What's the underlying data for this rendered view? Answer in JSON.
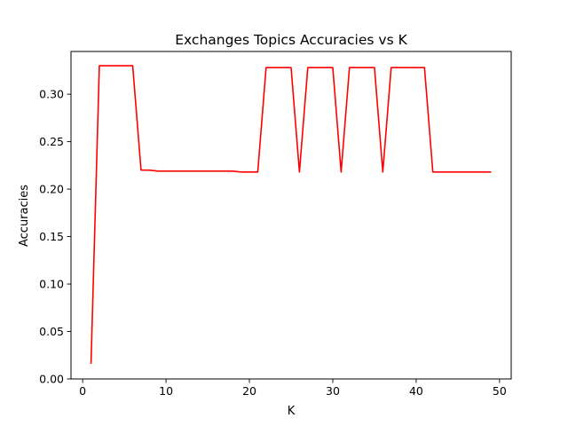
{
  "chart_data": {
    "type": "line",
    "title": "Exchanges Topics Accuracies vs K",
    "xlabel": "K",
    "ylabel": "Accuracies",
    "xlim": [
      -1.4,
      51.4
    ],
    "ylim": [
      0.0,
      0.345
    ],
    "x_ticks": [
      0,
      10,
      20,
      30,
      40,
      50
    ],
    "x_tick_labels": [
      "0",
      "10",
      "20",
      "30",
      "40",
      "50"
    ],
    "y_ticks": [
      0.0,
      0.05,
      0.1,
      0.15,
      0.2,
      0.25,
      0.3
    ],
    "y_tick_labels": [
      "0.00",
      "0.05",
      "0.10",
      "0.15",
      "0.20",
      "0.25",
      "0.30"
    ],
    "grid": false,
    "series": [
      {
        "color": "#ff0000",
        "x": [
          1,
          2,
          3,
          4,
          5,
          6,
          7,
          8,
          9,
          10,
          11,
          12,
          13,
          14,
          15,
          16,
          17,
          18,
          19,
          20,
          21,
          22,
          23,
          24,
          25,
          26,
          27,
          28,
          29,
          30,
          31,
          32,
          33,
          34,
          35,
          36,
          37,
          38,
          39,
          40,
          41,
          42,
          43,
          44,
          45,
          46,
          47,
          48,
          49
        ],
        "values": [
          0.016,
          0.33,
          0.33,
          0.33,
          0.33,
          0.33,
          0.22,
          0.22,
          0.219,
          0.219,
          0.219,
          0.219,
          0.219,
          0.219,
          0.219,
          0.219,
          0.219,
          0.219,
          0.218,
          0.218,
          0.218,
          0.328,
          0.328,
          0.328,
          0.328,
          0.218,
          0.328,
          0.328,
          0.328,
          0.328,
          0.218,
          0.328,
          0.328,
          0.328,
          0.328,
          0.218,
          0.328,
          0.328,
          0.328,
          0.328,
          0.328,
          0.218,
          0.218,
          0.218,
          0.218,
          0.218,
          0.218,
          0.218,
          0.218
        ]
      }
    ]
  }
}
